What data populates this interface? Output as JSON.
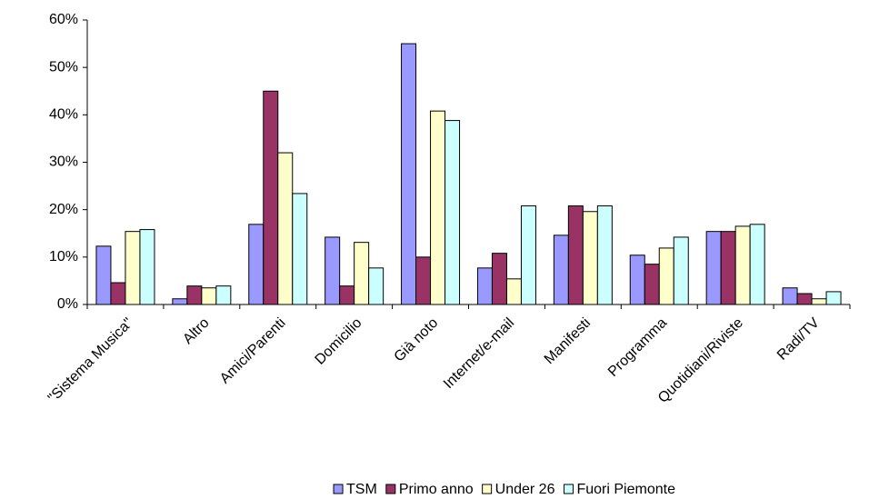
{
  "chart_data": {
    "type": "bar",
    "categories": [
      "\"Sistema Musica\"",
      "Altro",
      "Amici/Parenti",
      "Domicilio",
      "Già noto",
      "Internet/e-mail",
      "Manifesti",
      "Programma",
      "Quotidiani/Riviste",
      "Radi/TV"
    ],
    "series": [
      {
        "name": "TSM",
        "color": "#9999ff",
        "values": [
          12.3,
          1.2,
          16.9,
          14.2,
          55,
          7.7,
          14.6,
          10.4,
          15.4,
          3.5
        ]
      },
      {
        "name": "Primo anno",
        "color": "#993366",
        "values": [
          4.6,
          3.9,
          45,
          3.9,
          10,
          10.8,
          20.8,
          8.5,
          15.4,
          2.3
        ]
      },
      {
        "name": "Under 26",
        "color": "#ffffcc",
        "values": [
          15.4,
          3.5,
          32,
          13.1,
          40.8,
          5.4,
          19.6,
          11.9,
          16.5,
          1.2
        ]
      },
      {
        "name": "Fuori Piemonte",
        "color": "#ccffff",
        "values": [
          15.8,
          3.9,
          23.4,
          7.7,
          38.8,
          20.8,
          20.8,
          14.2,
          16.9,
          2.7
        ]
      }
    ],
    "ylim": [
      0,
      60
    ],
    "yticks": [
      {
        "value": 0,
        "label": "0%"
      },
      {
        "value": 10,
        "label": "10%"
      },
      {
        "value": 20,
        "label": "20%"
      },
      {
        "value": 30,
        "label": "30%"
      },
      {
        "value": 40,
        "label": "40%"
      },
      {
        "value": 50,
        "label": "50%"
      },
      {
        "value": 60,
        "label": "60%"
      }
    ],
    "grid": false,
    "legend": "bottom"
  }
}
